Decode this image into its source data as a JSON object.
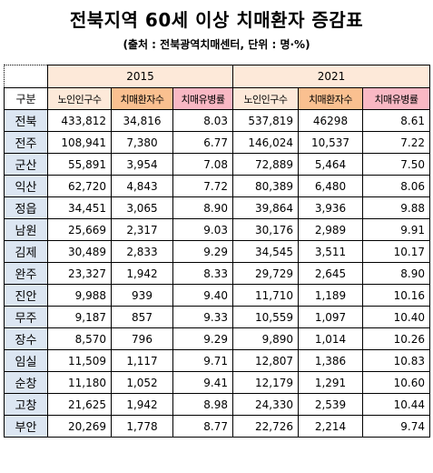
{
  "title": "전북지역 60세 이상 치매환자 증감표",
  "subtitle": "(출처 : 전북광역치매센터, 단위 : 명·%)",
  "years": [
    "2015",
    "2021"
  ],
  "header_region": "구분",
  "columns": [
    "노인인구수",
    "치매환자수",
    "치매유병률",
    "노인인구수",
    "치매환자수",
    "치매유병률"
  ],
  "rows": [
    [
      "전북",
      "433,812",
      "34,816",
      "8.03",
      "537,819",
      "46298",
      "8.61"
    ],
    [
      "전주",
      "108,941",
      "7,380",
      "6.77",
      "146,024",
      "10,537",
      "7.22"
    ],
    [
      "군산",
      "55,891",
      "3,954",
      "7.08",
      "72,889",
      "5,464",
      "7.50"
    ],
    [
      "익산",
      "62,720",
      "4,843",
      "7.72",
      "80,389",
      "6,480",
      "8.06"
    ],
    [
      "정읍",
      "34,451",
      "3,065",
      "8.90",
      "39,864",
      "3,936",
      "9.88"
    ],
    [
      "남원",
      "25,669",
      "2,317",
      "9.03",
      "30,176",
      "2,989",
      "9.91"
    ],
    [
      "김제",
      "30,489",
      "2,833",
      "9.29",
      "34,545",
      "3,511",
      "10.17"
    ],
    [
      "완주",
      "23,327",
      "1,942",
      "8.33",
      "29,729",
      "2,645",
      "8.90"
    ],
    [
      "진안",
      "9,988",
      "939",
      "9.40",
      "11,710",
      "1,189",
      "10.16"
    ],
    [
      "무주",
      "9,187",
      "857",
      "9.33",
      "10,559",
      "1,097",
      "10.40"
    ],
    [
      "장수",
      "8,570",
      "796",
      "9.29",
      "9,890",
      "1,014",
      "10.26"
    ],
    [
      "임실",
      "11,509",
      "1,117",
      "9.71",
      "12,807",
      "1,386",
      "10.83"
    ],
    [
      "순창",
      "11,180",
      "1,052",
      "9.41",
      "12,179",
      "1,291",
      "10.60"
    ],
    [
      "고창",
      "21,625",
      "1,942",
      "8.98",
      "24,330",
      "2,539",
      "10.44"
    ],
    [
      "부안",
      "20,269",
      "1,778",
      "8.77",
      "22,726",
      "2,214",
      "9.74"
    ]
  ]
}
